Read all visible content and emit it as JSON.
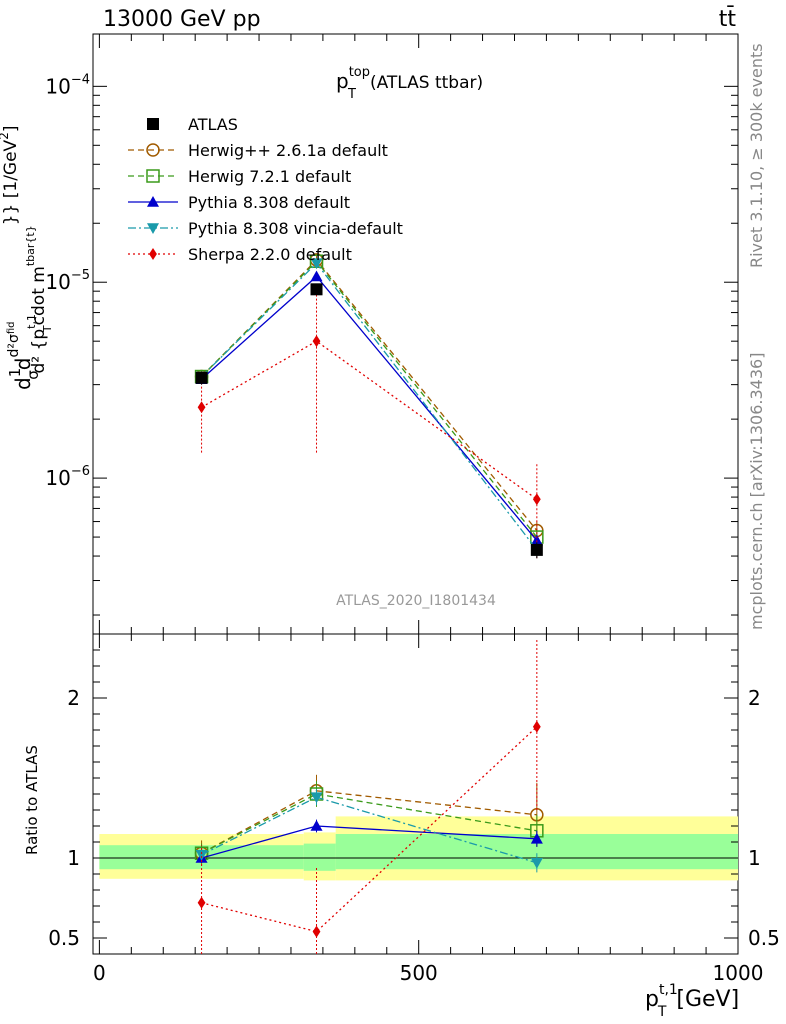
{
  "header": {
    "energy_label": "13000 GeV pp",
    "process_label": "tt̄"
  },
  "side": {
    "rivet_label": "Rivet 3.1.10, ≥ 300k events",
    "source_label": "mcplots.cern.ch [arXiv:1306.3436]"
  },
  "chart_data": {
    "type": "line",
    "title_main": "p",
    "title_sup": "top",
    "title_sub": "T",
    "title_rest": "(ATLAS ttbar)",
    "analysis_label": "ATLAS_2020_I1801434",
    "x_axis": {
      "label_main": "p",
      "label_sup": "t,1",
      "label_sub": "T",
      "label_unit": "[GeV]",
      "range": [
        -10,
        1000
      ],
      "ticks": [
        {
          "value": 0,
          "label": "0"
        },
        {
          "value": 500,
          "label": "500"
        },
        {
          "value": 1000,
          "label": "1000"
        }
      ]
    },
    "main_y_axis": {
      "scale": "log",
      "range": [
        1.6e-07,
        0.000185
      ],
      "label_pieces": [
        "d",
        "1",
        "σ",
        "d",
        "d²σ",
        "fid",
        "d² {p",
        "t,1",
        "T",
        "cdot m",
        "tbar{t}",
        "}} [1/GeV",
        "2",
        "]"
      ],
      "ticks": [
        {
          "value": 0.0001,
          "base": "10",
          "exp": "−4"
        },
        {
          "value": 1e-05,
          "base": "10",
          "exp": "−5"
        },
        {
          "value": 1e-06,
          "base": "10",
          "exp": "−6"
        }
      ]
    },
    "ratio_y_axis": {
      "label": "Ratio to ATLAS",
      "range": [
        0.4,
        2.4
      ],
      "ticks": [
        {
          "value": 0.5,
          "label": "0.5"
        },
        {
          "value": 1,
          "label": "1"
        },
        {
          "value": 2,
          "label": "2"
        }
      ]
    },
    "x": [
      160,
      340,
      685
    ],
    "bin_edges": [
      0,
      320,
      370,
      1000
    ],
    "ratio_band_bins": [
      {
        "x_from": 0,
        "x_to": 320,
        "yellow": [
          0.87,
          1.15
        ],
        "green": [
          0.93,
          1.08
        ]
      },
      {
        "x_from": 320,
        "x_to": 370,
        "yellow": [
          0.86,
          1.16
        ],
        "green": [
          0.92,
          1.09
        ]
      },
      {
        "x_from": 370,
        "x_to": 1000,
        "yellow": [
          0.86,
          1.26
        ],
        "green": [
          0.93,
          1.15
        ]
      }
    ],
    "series": [
      {
        "name": "ATLAS",
        "color": "#000000",
        "marker": "square-filled",
        "line": "none",
        "values": [
          3.25e-06,
          9.2e-06,
          4.3e-07
        ],
        "errors": [
          [
            2.5e-07,
            2.5e-07
          ],
          [
            6e-07,
            6e-07
          ],
          [
            4e-08,
            4e-08
          ]
        ],
        "ratio": [
          1.0,
          1.0,
          1.0
        ],
        "ratio_err": [
          [
            0,
            0
          ],
          [
            0,
            0
          ],
          [
            0,
            0
          ]
        ]
      },
      {
        "name": "Herwig++ 2.6.1a default",
        "color": "#a15b00",
        "marker": "circle-open",
        "line": "dashed",
        "values": [
          3.3e-06,
          1.3e-05,
          5.4e-07
        ],
        "errors": [
          [
            1e-07,
            1e-07
          ],
          [
            6e-07,
            6e-07
          ],
          [
            6e-08,
            6e-08
          ]
        ],
        "ratio": [
          1.03,
          1.42,
          1.27
        ],
        "ratio_err": [
          [
            0.08,
            0.08
          ],
          [
            0.1,
            0.1
          ],
          [
            0.2,
            0.2
          ]
        ]
      },
      {
        "name": "Herwig 7.2.1 default",
        "color": "#3a9a1a",
        "marker": "square-open",
        "line": "dashed",
        "values": [
          3.3e-06,
          1.28e-05,
          5e-07
        ],
        "errors": [
          [
            1e-07,
            1e-07
          ],
          [
            5e-07,
            5e-07
          ],
          [
            5e-08,
            5e-08
          ]
        ],
        "ratio": [
          1.03,
          1.4,
          1.17
        ],
        "ratio_err": [
          [
            0.06,
            0.06
          ],
          [
            0.08,
            0.08
          ],
          [
            0.1,
            0.1
          ]
        ]
      },
      {
        "name": "Pythia 8.308 default",
        "color": "#0000cc",
        "marker": "triangle-up-filled",
        "line": "solid",
        "values": [
          3.2e-06,
          1.07e-05,
          4.8e-07
        ],
        "errors": [
          [
            1e-07,
            1e-07
          ],
          [
            3e-07,
            3e-07
          ],
          [
            3e-08,
            3e-08
          ]
        ],
        "ratio": [
          1.0,
          1.2,
          1.12
        ],
        "ratio_err": [
          [
            0.03,
            0.03
          ],
          [
            0.04,
            0.04
          ],
          [
            0.05,
            0.05
          ]
        ]
      },
      {
        "name": "Pythia 8.308 vincia-default",
        "color": "#1a9aaa",
        "marker": "triangle-down-filled",
        "line": "dashdot",
        "values": [
          3.3e-06,
          1.25e-05,
          4.3e-07
        ],
        "errors": [
          [
            1e-07,
            1e-07
          ],
          [
            4e-07,
            4e-07
          ],
          [
            4e-08,
            4e-08
          ]
        ],
        "ratio": [
          1.02,
          1.38,
          0.97
        ],
        "ratio_err": [
          [
            0.04,
            0.04
          ],
          [
            0.05,
            0.05
          ],
          [
            0.06,
            0.06
          ]
        ]
      },
      {
        "name": "Sherpa 2.2.0 default",
        "color": "#e00000",
        "marker": "diamond-filled",
        "line": "dotted",
        "values": [
          2.3e-06,
          5e-06,
          7.8e-07
        ],
        "errors": [
          [
            9.5e-07,
            9.5e-07
          ],
          [
            3.65e-06,
            3.65e-06
          ],
          [
            3.9e-07,
            4e-07
          ]
        ],
        "ratio": [
          0.72,
          0.54,
          1.82
        ],
        "ratio_err": [
          [
            0.32,
            0.36
          ],
          [
            0.2,
            0.4
          ],
          [
            0.52,
            0.55
          ]
        ]
      }
    ]
  }
}
